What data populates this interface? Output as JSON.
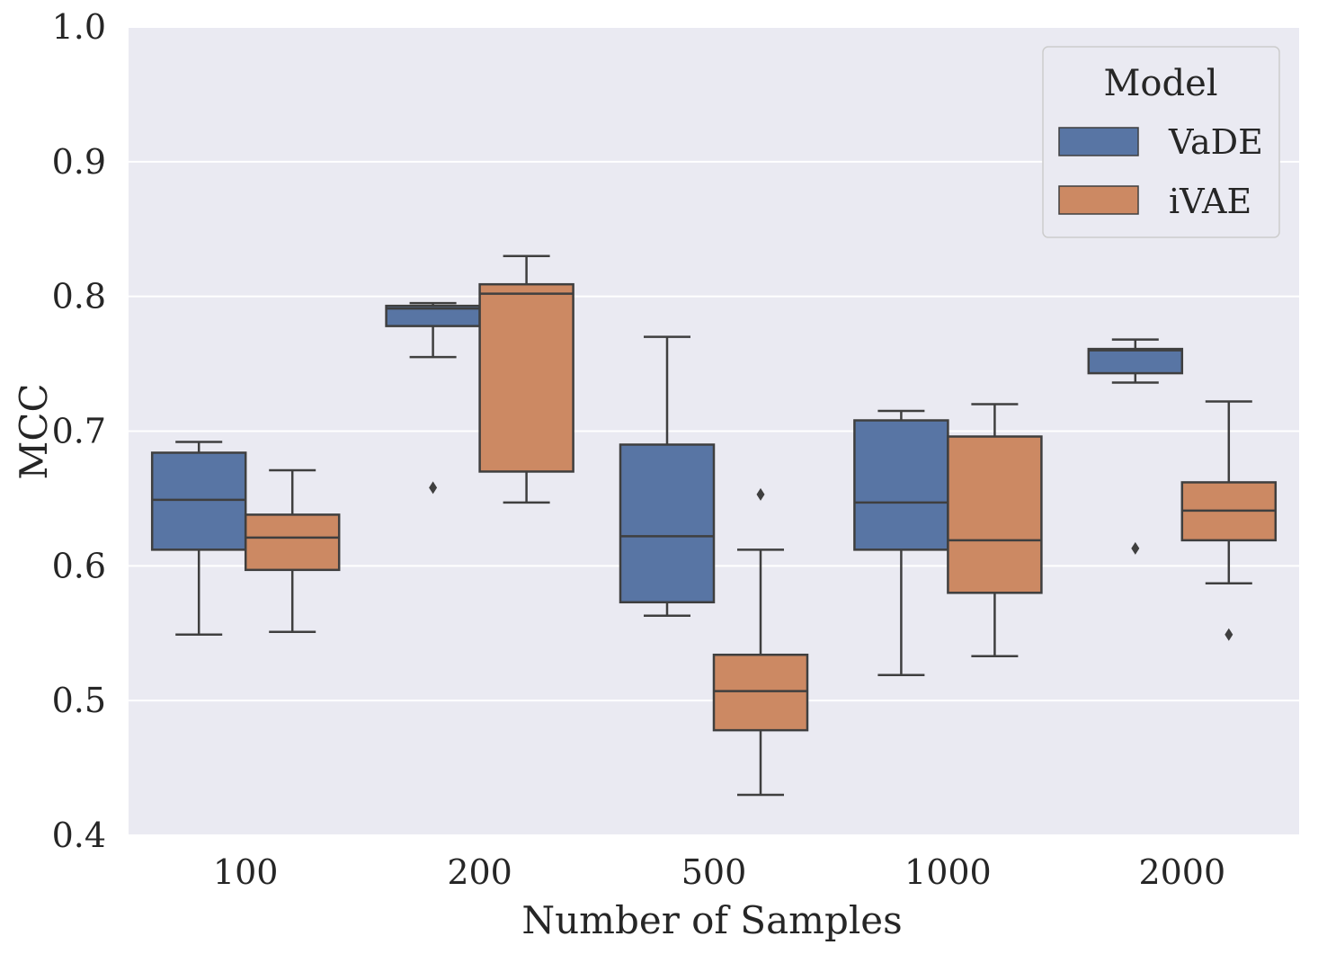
{
  "chart_data": {
    "type": "boxplot",
    "title": "",
    "xlabel": "Number of Samples",
    "ylabel": "MCC",
    "ylim": [
      0.4,
      1.0
    ],
    "yticks": [
      "0.4",
      "0.5",
      "0.6",
      "0.7",
      "0.8",
      "0.9",
      "1.0"
    ],
    "categories": [
      "100",
      "200",
      "500",
      "1000",
      "2000"
    ],
    "grid": true,
    "legend": {
      "title": "Model",
      "placement": "top-right"
    },
    "series": [
      {
        "name": "VaDE",
        "color": "#5875a4",
        "boxes": [
          {
            "whislo": 0.549,
            "q1": 0.612,
            "med": 0.649,
            "q3": 0.684,
            "whishi": 0.692,
            "fliers": []
          },
          {
            "whislo": 0.755,
            "q1": 0.778,
            "med": 0.791,
            "q3": 0.793,
            "whishi": 0.795,
            "fliers": [
              0.658
            ]
          },
          {
            "whislo": 0.563,
            "q1": 0.573,
            "med": 0.622,
            "q3": 0.69,
            "whishi": 0.77,
            "fliers": []
          },
          {
            "whislo": 0.519,
            "q1": 0.612,
            "med": 0.647,
            "q3": 0.708,
            "whishi": 0.715,
            "fliers": []
          },
          {
            "whislo": 0.736,
            "q1": 0.743,
            "med": 0.76,
            "q3": 0.761,
            "whishi": 0.768,
            "fliers": [
              0.613
            ]
          }
        ]
      },
      {
        "name": "iVAE",
        "color": "#cc8963",
        "boxes": [
          {
            "whislo": 0.551,
            "q1": 0.597,
            "med": 0.621,
            "q3": 0.638,
            "whishi": 0.671,
            "fliers": []
          },
          {
            "whislo": 0.647,
            "q1": 0.67,
            "med": 0.802,
            "q3": 0.809,
            "whishi": 0.83,
            "fliers": []
          },
          {
            "whislo": 0.43,
            "q1": 0.478,
            "med": 0.507,
            "q3": 0.534,
            "whishi": 0.612,
            "fliers": [
              0.653
            ]
          },
          {
            "whislo": 0.533,
            "q1": 0.58,
            "med": 0.619,
            "q3": 0.696,
            "whishi": 0.72,
            "fliers": []
          },
          {
            "whislo": 0.587,
            "q1": 0.619,
            "med": 0.641,
            "q3": 0.662,
            "whishi": 0.722,
            "fliers": [
              0.549
            ]
          }
        ]
      }
    ]
  }
}
